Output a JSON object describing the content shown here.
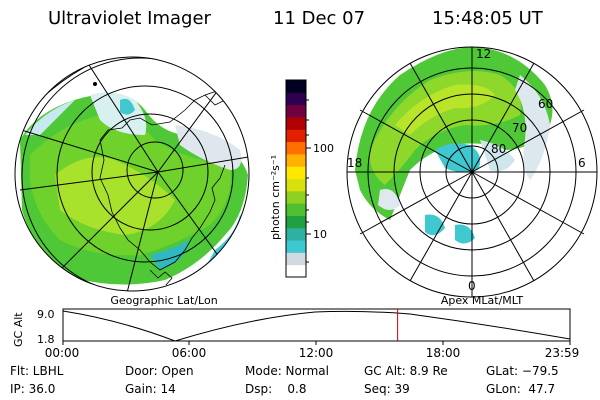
{
  "header": {
    "instrument": "Ultraviolet Imager",
    "date": "11 Dec 07",
    "time": "15:48:05 UT"
  },
  "left_map": {
    "caption": "Geographic Lat/Lon"
  },
  "right_map": {
    "caption": "Apex MLat/MLT",
    "mlt_labels": [
      "12",
      "18",
      "6",
      "0"
    ],
    "lat_labels": [
      "60",
      "70",
      "80"
    ]
  },
  "colorbar": {
    "unit": "photon cm⁻²s⁻¹",
    "ticks": [
      "100",
      "10"
    ],
    "scale": "log",
    "colors": [
      "#ffffff",
      "#d0d8e0",
      "#40c8d0",
      "#30b0a0",
      "#20a040",
      "#50c030",
      "#90d020",
      "#d8e010",
      "#ffe800",
      "#ffb000",
      "#ff7000",
      "#e02000",
      "#b00000",
      "#700040",
      "#300050",
      "#000020"
    ]
  },
  "timeline": {
    "y_label": "GC Alt",
    "y_ticks": [
      "9.0",
      "1.8"
    ],
    "x_ticks": [
      "00:00",
      "06:00",
      "12:00",
      "18:00",
      "23:59"
    ],
    "current_time_fraction": 0.66
  },
  "info": {
    "filter": "Flt: LBHL",
    "door": "Door: Open",
    "mode": "Mode: Normal",
    "gc_alt": "GC Alt: 8.9 Re",
    "glat": "GLat: −79.5",
    "ip": "IP: 36.0",
    "gain": "Gain: 14",
    "dsp": "Dsp:    0.8",
    "seq": "Seq: 39",
    "glon": "GLon:  47.7"
  }
}
